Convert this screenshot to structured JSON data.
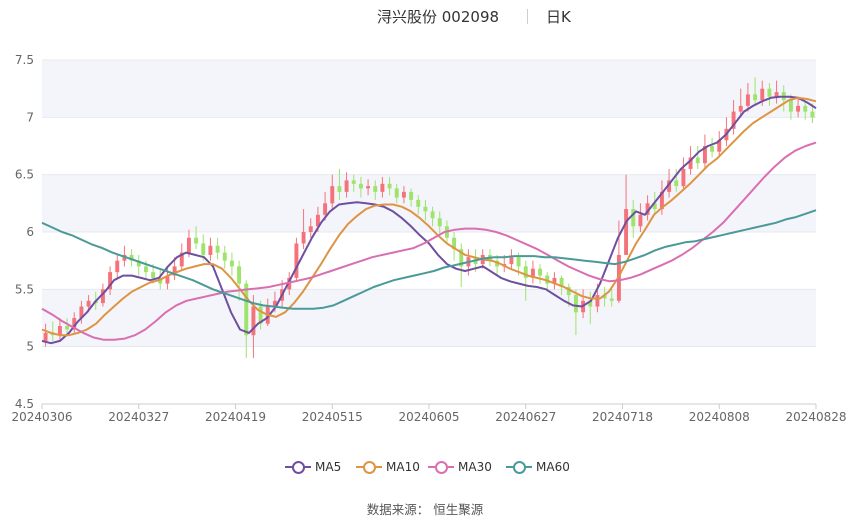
{
  "title": {
    "stock": "浔兴股份 002098",
    "period": "日K"
  },
  "source_text": "数据来源：  恒生聚源",
  "colors": {
    "up": "#f4737a",
    "down": "#9de36c",
    "MA5": "#6f4f9f",
    "MA10": "#de9444",
    "MA30": "#d96fb1",
    "MA60": "#4a9a99",
    "grid": "#e6e9f0",
    "band": "#f4f5fa",
    "axis_text": "#666666"
  },
  "chart_data": {
    "type": "candlestick",
    "x_labels": [
      "20240306",
      "20240327",
      "20240419",
      "20240515",
      "20240605",
      "20240627",
      "20240718",
      "20240808",
      "20240828"
    ],
    "y_ticks": [
      4.5,
      5,
      5.5,
      6,
      6.5,
      7,
      7.5
    ],
    "y_tick_labels": [
      "4.5",
      "5",
      "5.5",
      "6",
      "6.5",
      "7",
      "7.5"
    ],
    "ylim": [
      4.5,
      7.5
    ],
    "legend": [
      "MA5",
      "MA10",
      "MA30",
      "MA60"
    ],
    "legend_position": "bottom-center",
    "candles": [
      {
        "o": 5.05,
        "c": 5.12,
        "h": 5.2,
        "l": 5.0
      },
      {
        "o": 5.12,
        "c": 5.1,
        "h": 5.22,
        "l": 5.05
      },
      {
        "o": 5.1,
        "c": 5.18,
        "h": 5.25,
        "l": 5.05
      },
      {
        "o": 5.18,
        "c": 5.15,
        "h": 5.25,
        "l": 5.1
      },
      {
        "o": 5.15,
        "c": 5.25,
        "h": 5.3,
        "l": 5.12
      },
      {
        "o": 5.25,
        "c": 5.35,
        "h": 5.4,
        "l": 5.2
      },
      {
        "o": 5.35,
        "c": 5.4,
        "h": 5.45,
        "l": 5.3
      },
      {
        "o": 5.4,
        "c": 5.38,
        "h": 5.48,
        "l": 5.32
      },
      {
        "o": 5.38,
        "c": 5.5,
        "h": 5.55,
        "l": 5.35
      },
      {
        "o": 5.5,
        "c": 5.65,
        "h": 5.7,
        "l": 5.45
      },
      {
        "o": 5.65,
        "c": 5.75,
        "h": 5.8,
        "l": 5.6
      },
      {
        "o": 5.75,
        "c": 5.8,
        "h": 5.88,
        "l": 5.7
      },
      {
        "o": 5.8,
        "c": 5.75,
        "h": 5.85,
        "l": 5.7
      },
      {
        "o": 5.75,
        "c": 5.7,
        "h": 5.8,
        "l": 5.62
      },
      {
        "o": 5.7,
        "c": 5.65,
        "h": 5.75,
        "l": 5.6
      },
      {
        "o": 5.65,
        "c": 5.6,
        "h": 5.72,
        "l": 5.55
      },
      {
        "o": 5.6,
        "c": 5.55,
        "h": 5.68,
        "l": 5.5
      },
      {
        "o": 5.55,
        "c": 5.62,
        "h": 5.7,
        "l": 5.5
      },
      {
        "o": 5.62,
        "c": 5.7,
        "h": 5.78,
        "l": 5.58
      },
      {
        "o": 5.7,
        "c": 5.82,
        "h": 5.9,
        "l": 5.66
      },
      {
        "o": 5.82,
        "c": 5.95,
        "h": 6.02,
        "l": 5.78
      },
      {
        "o": 5.95,
        "c": 5.9,
        "h": 6.05,
        "l": 5.85
      },
      {
        "o": 5.9,
        "c": 5.8,
        "h": 5.98,
        "l": 5.75
      },
      {
        "o": 5.8,
        "c": 5.88,
        "h": 5.95,
        "l": 5.75
      },
      {
        "o": 5.88,
        "c": 5.82,
        "h": 5.95,
        "l": 5.76
      },
      {
        "o": 5.82,
        "c": 5.75,
        "h": 5.88,
        "l": 5.68
      },
      {
        "o": 5.75,
        "c": 5.7,
        "h": 5.82,
        "l": 5.62
      },
      {
        "o": 5.7,
        "c": 5.55,
        "h": 5.75,
        "l": 5.4
      },
      {
        "o": 5.55,
        "c": 5.1,
        "h": 5.58,
        "l": 4.9
      },
      {
        "o": 5.1,
        "c": 5.35,
        "h": 5.45,
        "l": 4.9
      },
      {
        "o": 5.35,
        "c": 5.2,
        "h": 5.4,
        "l": 5.15
      },
      {
        "o": 5.2,
        "c": 5.35,
        "h": 5.42,
        "l": 5.18
      },
      {
        "o": 5.35,
        "c": 5.4,
        "h": 5.48,
        "l": 5.3
      },
      {
        "o": 5.4,
        "c": 5.5,
        "h": 5.58,
        "l": 5.35
      },
      {
        "o": 5.5,
        "c": 5.6,
        "h": 5.65,
        "l": 5.45
      },
      {
        "o": 5.6,
        "c": 5.9,
        "h": 5.95,
        "l": 5.58
      },
      {
        "o": 5.9,
        "c": 6.0,
        "h": 6.2,
        "l": 5.85
      },
      {
        "o": 6.0,
        "c": 6.05,
        "h": 6.12,
        "l": 5.95
      },
      {
        "o": 6.05,
        "c": 6.15,
        "h": 6.22,
        "l": 6.0
      },
      {
        "o": 6.15,
        "c": 6.25,
        "h": 6.35,
        "l": 6.1
      },
      {
        "o": 6.25,
        "c": 6.4,
        "h": 6.5,
        "l": 6.2
      },
      {
        "o": 6.4,
        "c": 6.35,
        "h": 6.55,
        "l": 6.28
      },
      {
        "o": 6.35,
        "c": 6.45,
        "h": 6.52,
        "l": 6.3
      },
      {
        "o": 6.45,
        "c": 6.42,
        "h": 6.5,
        "l": 6.35
      },
      {
        "o": 6.42,
        "c": 6.38,
        "h": 6.48,
        "l": 6.3
      },
      {
        "o": 6.38,
        "c": 6.4,
        "h": 6.46,
        "l": 6.32
      },
      {
        "o": 6.4,
        "c": 6.35,
        "h": 6.45,
        "l": 6.28
      },
      {
        "o": 6.35,
        "c": 6.42,
        "h": 6.48,
        "l": 6.3
      },
      {
        "o": 6.42,
        "c": 6.38,
        "h": 6.48,
        "l": 6.32
      },
      {
        "o": 6.38,
        "c": 6.3,
        "h": 6.42,
        "l": 6.25
      },
      {
        "o": 6.3,
        "c": 6.35,
        "h": 6.4,
        "l": 6.25
      },
      {
        "o": 6.35,
        "c": 6.28,
        "h": 6.38,
        "l": 6.22
      },
      {
        "o": 6.28,
        "c": 6.22,
        "h": 6.32,
        "l": 6.15
      },
      {
        "o": 6.22,
        "c": 6.18,
        "h": 6.28,
        "l": 6.1
      },
      {
        "o": 6.18,
        "c": 6.12,
        "h": 6.22,
        "l": 6.05
      },
      {
        "o": 6.12,
        "c": 6.05,
        "h": 6.18,
        "l": 5.98
      },
      {
        "o": 6.05,
        "c": 5.95,
        "h": 6.1,
        "l": 5.9
      },
      {
        "o": 5.95,
        "c": 5.85,
        "h": 6.0,
        "l": 5.75
      },
      {
        "o": 5.85,
        "c": 5.7,
        "h": 5.9,
        "l": 5.52
      },
      {
        "o": 5.7,
        "c": 5.78,
        "h": 5.85,
        "l": 5.62
      },
      {
        "o": 5.78,
        "c": 5.72,
        "h": 5.85,
        "l": 5.65
      },
      {
        "o": 5.72,
        "c": 5.8,
        "h": 5.85,
        "l": 5.68
      },
      {
        "o": 5.8,
        "c": 5.75,
        "h": 5.85,
        "l": 5.7
      },
      {
        "o": 5.75,
        "c": 5.7,
        "h": 5.8,
        "l": 5.62
      },
      {
        "o": 5.7,
        "c": 5.72,
        "h": 5.8,
        "l": 5.65
      },
      {
        "o": 5.72,
        "c": 5.78,
        "h": 5.85,
        "l": 5.68
      },
      {
        "o": 5.78,
        "c": 5.7,
        "h": 5.82,
        "l": 5.62
      },
      {
        "o": 5.7,
        "c": 5.6,
        "h": 5.75,
        "l": 5.4
      },
      {
        "o": 5.6,
        "c": 5.68,
        "h": 5.75,
        "l": 5.55
      },
      {
        "o": 5.68,
        "c": 5.62,
        "h": 5.72,
        "l": 5.55
      },
      {
        "o": 5.62,
        "c": 5.55,
        "h": 5.65,
        "l": 5.48
      },
      {
        "o": 5.55,
        "c": 5.6,
        "h": 5.65,
        "l": 5.5
      },
      {
        "o": 5.6,
        "c": 5.52,
        "h": 5.62,
        "l": 5.45
      },
      {
        "o": 5.52,
        "c": 5.45,
        "h": 5.55,
        "l": 5.35
      },
      {
        "o": 5.45,
        "c": 5.3,
        "h": 5.5,
        "l": 5.1
      },
      {
        "o": 5.3,
        "c": 5.4,
        "h": 5.5,
        "l": 5.25
      },
      {
        "o": 5.4,
        "c": 5.35,
        "h": 5.48,
        "l": 5.2
      },
      {
        "o": 5.35,
        "c": 5.45,
        "h": 5.55,
        "l": 5.3
      },
      {
        "o": 5.45,
        "c": 5.42,
        "h": 5.52,
        "l": 5.35
      },
      {
        "o": 5.42,
        "c": 5.4,
        "h": 5.5,
        "l": 5.35
      },
      {
        "o": 5.4,
        "c": 5.8,
        "h": 6.1,
        "l": 5.38
      },
      {
        "o": 5.8,
        "c": 6.2,
        "h": 6.5,
        "l": 5.8
      },
      {
        "o": 6.2,
        "c": 6.05,
        "h": 6.28,
        "l": 5.95
      },
      {
        "o": 6.05,
        "c": 6.15,
        "h": 6.25,
        "l": 6.0
      },
      {
        "o": 6.15,
        "c": 6.25,
        "h": 6.32,
        "l": 6.1
      },
      {
        "o": 6.25,
        "c": 6.2,
        "h": 6.35,
        "l": 6.15
      },
      {
        "o": 6.2,
        "c": 6.35,
        "h": 6.45,
        "l": 6.15
      },
      {
        "o": 6.35,
        "c": 6.45,
        "h": 6.55,
        "l": 6.3
      },
      {
        "o": 6.45,
        "c": 6.4,
        "h": 6.55,
        "l": 6.35
      },
      {
        "o": 6.4,
        "c": 6.55,
        "h": 6.65,
        "l": 6.38
      },
      {
        "o": 6.55,
        "c": 6.65,
        "h": 6.75,
        "l": 6.5
      },
      {
        "o": 6.65,
        "c": 6.6,
        "h": 6.75,
        "l": 6.55
      },
      {
        "o": 6.6,
        "c": 6.75,
        "h": 6.85,
        "l": 6.55
      },
      {
        "o": 6.75,
        "c": 6.7,
        "h": 6.82,
        "l": 6.65
      },
      {
        "o": 6.7,
        "c": 6.8,
        "h": 6.88,
        "l": 6.65
      },
      {
        "o": 6.8,
        "c": 6.9,
        "h": 7.0,
        "l": 6.75
      },
      {
        "o": 6.9,
        "c": 7.05,
        "h": 7.15,
        "l": 6.85
      },
      {
        "o": 7.05,
        "c": 7.1,
        "h": 7.25,
        "l": 7.0
      },
      {
        "o": 7.1,
        "c": 7.2,
        "h": 7.3,
        "l": 7.05
      },
      {
        "o": 7.2,
        "c": 7.15,
        "h": 7.35,
        "l": 7.1
      },
      {
        "o": 7.15,
        "c": 7.25,
        "h": 7.32,
        "l": 7.1
      },
      {
        "o": 7.25,
        "c": 7.18,
        "h": 7.3,
        "l": 7.1
      },
      {
        "o": 7.18,
        "c": 7.22,
        "h": 7.32,
        "l": 7.12
      },
      {
        "o": 7.22,
        "c": 7.15,
        "h": 7.28,
        "l": 7.05
      },
      {
        "o": 7.15,
        "c": 7.05,
        "h": 7.2,
        "l": 6.98
      },
      {
        "o": 7.05,
        "c": 7.1,
        "h": 7.18,
        "l": 7.0
      },
      {
        "o": 7.1,
        "c": 7.05,
        "h": 7.15,
        "l": 6.98
      },
      {
        "o": 7.05,
        "c": 7.0,
        "h": 7.12,
        "l": 6.95
      }
    ],
    "series": [
      {
        "name": "MA5",
        "values": [
          5.05,
          5.03,
          5.05,
          5.12,
          5.22,
          5.3,
          5.4,
          5.48,
          5.58,
          5.62,
          5.62,
          5.6,
          5.58,
          5.6,
          5.7,
          5.78,
          5.82,
          5.8,
          5.78,
          5.7,
          5.5,
          5.3,
          5.15,
          5.12,
          5.2,
          5.25,
          5.35,
          5.5,
          5.65,
          5.8,
          5.95,
          6.08,
          6.18,
          6.24,
          6.25,
          6.26,
          6.25,
          6.24,
          6.22,
          6.18,
          6.12,
          6.05,
          5.97,
          5.9,
          5.8,
          5.72,
          5.68,
          5.66,
          5.68,
          5.7,
          5.65,
          5.6,
          5.57,
          5.55,
          5.53,
          5.52,
          5.5,
          5.45,
          5.4,
          5.36,
          5.35,
          5.4,
          5.55,
          5.75,
          5.95,
          6.1,
          6.18,
          6.15,
          6.25,
          6.35,
          6.45,
          6.55,
          6.62,
          6.7,
          6.75,
          6.78,
          6.85,
          6.95,
          7.05,
          7.1,
          7.14,
          7.17,
          7.18,
          7.18,
          7.17,
          7.13,
          7.08
        ]
      },
      {
        "name": "MA10",
        "values": [
          5.15,
          5.12,
          5.1,
          5.1,
          5.12,
          5.15,
          5.2,
          5.28,
          5.35,
          5.42,
          5.48,
          5.52,
          5.56,
          5.58,
          5.62,
          5.65,
          5.68,
          5.7,
          5.72,
          5.72,
          5.68,
          5.6,
          5.5,
          5.4,
          5.32,
          5.28,
          5.26,
          5.3,
          5.38,
          5.48,
          5.6,
          5.72,
          5.85,
          5.97,
          6.07,
          6.14,
          6.2,
          6.23,
          6.24,
          6.24,
          6.22,
          6.18,
          6.12,
          6.05,
          5.97,
          5.9,
          5.85,
          5.8,
          5.78,
          5.76,
          5.75,
          5.72,
          5.68,
          5.65,
          5.62,
          5.6,
          5.58,
          5.55,
          5.52,
          5.48,
          5.44,
          5.42,
          5.42,
          5.48,
          5.6,
          5.75,
          5.9,
          6.02,
          6.15,
          6.22,
          6.28,
          6.35,
          6.42,
          6.5,
          6.58,
          6.64,
          6.72,
          6.8,
          6.88,
          6.95,
          7.0,
          7.05,
          7.1,
          7.15,
          7.17,
          7.16,
          7.14
        ]
      },
      {
        "name": "MA30",
        "values": [
          5.33,
          5.28,
          5.22,
          5.17,
          5.12,
          5.08,
          5.06,
          5.06,
          5.07,
          5.1,
          5.15,
          5.22,
          5.3,
          5.36,
          5.4,
          5.42,
          5.44,
          5.46,
          5.48,
          5.49,
          5.5,
          5.51,
          5.52,
          5.54,
          5.56,
          5.58,
          5.6,
          5.63,
          5.66,
          5.69,
          5.72,
          5.75,
          5.78,
          5.8,
          5.82,
          5.84,
          5.86,
          5.9,
          5.95,
          6.0,
          6.02,
          6.03,
          6.03,
          6.02,
          6.0,
          5.97,
          5.93,
          5.89,
          5.85,
          5.8,
          5.75,
          5.7,
          5.66,
          5.62,
          5.59,
          5.57,
          5.58,
          5.6,
          5.63,
          5.67,
          5.71,
          5.75,
          5.8,
          5.86,
          5.93,
          6.0,
          6.08,
          6.18,
          6.28,
          6.38,
          6.48,
          6.57,
          6.65,
          6.71,
          6.75,
          6.78
        ]
      },
      {
        "name": "MA60",
        "values": [
          6.08,
          6.04,
          6.0,
          5.97,
          5.93,
          5.89,
          5.86,
          5.82,
          5.79,
          5.76,
          5.73,
          5.7,
          5.67,
          5.64,
          5.61,
          5.58,
          5.54,
          5.5,
          5.47,
          5.44,
          5.41,
          5.38,
          5.36,
          5.35,
          5.34,
          5.33,
          5.33,
          5.33,
          5.34,
          5.36,
          5.4,
          5.44,
          5.48,
          5.52,
          5.55,
          5.58,
          5.6,
          5.62,
          5.64,
          5.66,
          5.69,
          5.71,
          5.73,
          5.75,
          5.77,
          5.78,
          5.78,
          5.79,
          5.79,
          5.79,
          5.78,
          5.78,
          5.77,
          5.76,
          5.75,
          5.74,
          5.73,
          5.72,
          5.74,
          5.77,
          5.8,
          5.84,
          5.87,
          5.89,
          5.91,
          5.92,
          5.94,
          5.96,
          5.98,
          6.0,
          6.02,
          6.04,
          6.06,
          6.08,
          6.11,
          6.13,
          6.16,
          6.19
        ]
      }
    ]
  }
}
